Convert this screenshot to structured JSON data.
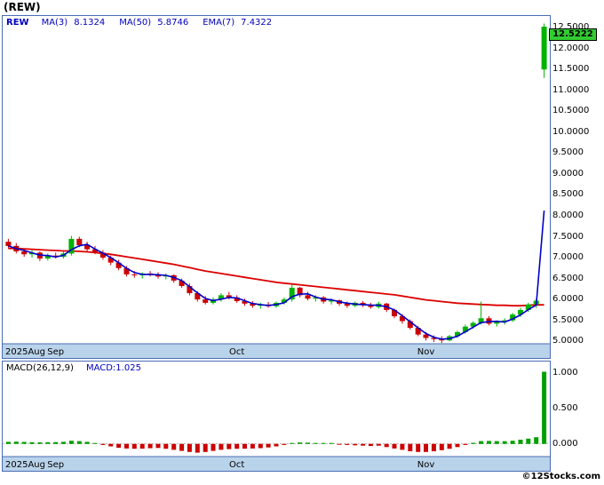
{
  "window": {
    "title": "(REW)",
    "copyright": "©12Stocks.com"
  },
  "colors": {
    "up": "#00b300",
    "down": "#cc0000",
    "ma3_line": "#0000cc",
    "ma50_line": "#dd0000",
    "frame": "#4a6db4",
    "band_bg": "#b9d3ea",
    "badge_bg": "#33cc33",
    "legend_text": "#0000bb",
    "macd_pos": "#00a000",
    "macd_neg": "#cc0000"
  },
  "main_chart": {
    "legend": {
      "symbol": "REW",
      "items": [
        {
          "label": "MA(3)",
          "value": "8.1324"
        },
        {
          "label": "MA(50)",
          "value": "5.8746"
        },
        {
          "label": "EMA(7)",
          "value": "7.4322"
        }
      ]
    },
    "last_price_badge": "12.5222",
    "y_tick_labels": [
      "12.5000",
      "12.0000",
      "11.5000",
      "11.0000",
      "10.5000",
      "10.0000",
      "9.5000",
      "9.0000",
      "8.5000",
      "8.0000",
      "7.5000",
      "7.0000",
      "6.5000",
      "6.0000",
      "5.5000",
      "5.0000"
    ]
  },
  "macd_panel": {
    "param_label": "MACD(26,12,9)",
    "value_label": "MACD:1.025",
    "y_tick_labels": [
      "1.000",
      "0.500",
      "0.000"
    ]
  },
  "chart_data": {
    "type": "candlestick",
    "title": "(REW)",
    "symbol": "REW",
    "x_axis_labels": [
      {
        "text": "2025Aug",
        "index": -1
      },
      {
        "text": "Sep",
        "index": 6
      },
      {
        "text": "Oct",
        "index": 29
      },
      {
        "text": "Nov",
        "index": 53
      }
    ],
    "price": {
      "ylim": [
        4.94,
        12.78
      ],
      "last_close": 12.5222,
      "candles": [
        [
          7.38,
          7.45,
          7.22,
          7.28
        ],
        [
          7.28,
          7.35,
          7.1,
          7.15
        ],
        [
          7.15,
          7.22,
          7.02,
          7.08
        ],
        [
          7.08,
          7.18,
          7.0,
          7.12
        ],
        [
          7.12,
          7.15,
          6.92,
          6.98
        ],
        [
          6.98,
          7.1,
          6.93,
          7.05
        ],
        [
          7.05,
          7.12,
          6.98,
          7.02
        ],
        [
          7.02,
          7.15,
          6.98,
          7.1
        ],
        [
          7.1,
          7.52,
          7.05,
          7.45
        ],
        [
          7.45,
          7.5,
          7.25,
          7.3
        ],
        [
          7.3,
          7.38,
          7.15,
          7.2
        ],
        [
          7.2,
          7.28,
          7.08,
          7.12
        ],
        [
          7.12,
          7.18,
          6.95,
          7.0
        ],
        [
          7.0,
          7.05,
          6.82,
          6.88
        ],
        [
          6.88,
          6.95,
          6.7,
          6.75
        ],
        [
          6.75,
          6.8,
          6.55,
          6.6
        ],
        [
          6.6,
          6.68,
          6.52,
          6.58
        ],
        [
          6.58,
          6.65,
          6.5,
          6.62
        ],
        [
          6.62,
          6.68,
          6.55,
          6.6
        ],
        [
          6.6,
          6.65,
          6.5,
          6.55
        ],
        [
          6.55,
          6.62,
          6.48,
          6.58
        ],
        [
          6.58,
          6.6,
          6.4,
          6.45
        ],
        [
          6.45,
          6.5,
          6.28,
          6.32
        ],
        [
          6.32,
          6.38,
          6.1,
          6.15
        ],
        [
          6.15,
          6.2,
          5.95,
          6.0
        ],
        [
          6.0,
          6.08,
          5.88,
          5.92
        ],
        [
          5.92,
          6.05,
          5.88,
          6.0
        ],
        [
          6.0,
          6.15,
          5.95,
          6.1
        ],
        [
          6.1,
          6.18,
          6.0,
          6.05
        ],
        [
          6.05,
          6.1,
          5.92,
          5.96
        ],
        [
          5.96,
          6.02,
          5.85,
          5.9
        ],
        [
          5.9,
          5.96,
          5.8,
          5.85
        ],
        [
          5.85,
          5.92,
          5.78,
          5.88
        ],
        [
          5.88,
          5.94,
          5.8,
          5.84
        ],
        [
          5.84,
          5.95,
          5.8,
          5.92
        ],
        [
          5.92,
          6.05,
          5.88,
          6.0
        ],
        [
          6.0,
          6.35,
          5.95,
          6.28
        ],
        [
          6.28,
          6.3,
          6.05,
          6.1
        ],
        [
          6.1,
          6.18,
          5.98,
          6.02
        ],
        [
          6.02,
          6.1,
          5.95,
          6.05
        ],
        [
          6.05,
          6.08,
          5.9,
          5.95
        ],
        [
          5.95,
          6.02,
          5.88,
          5.98
        ],
        [
          5.98,
          6.0,
          5.85,
          5.9
        ],
        [
          5.9,
          5.95,
          5.8,
          5.85
        ],
        [
          5.85,
          5.95,
          5.82,
          5.92
        ],
        [
          5.92,
          5.96,
          5.82,
          5.86
        ],
        [
          5.86,
          5.92,
          5.78,
          5.82
        ],
        [
          5.82,
          5.95,
          5.78,
          5.9
        ],
        [
          5.9,
          5.92,
          5.7,
          5.75
        ],
        [
          5.75,
          5.78,
          5.55,
          5.6
        ],
        [
          5.6,
          5.65,
          5.42,
          5.48
        ],
        [
          5.48,
          5.52,
          5.28,
          5.32
        ],
        [
          5.32,
          5.36,
          5.12,
          5.16
        ],
        [
          5.16,
          5.22,
          5.02,
          5.08
        ],
        [
          5.08,
          5.14,
          4.98,
          5.05
        ],
        [
          5.05,
          5.12,
          4.96,
          5.02
        ],
        [
          5.02,
          5.15,
          5.0,
          5.12
        ],
        [
          5.12,
          5.25,
          5.08,
          5.22
        ],
        [
          5.22,
          5.4,
          5.18,
          5.35
        ],
        [
          5.35,
          5.48,
          5.3,
          5.44
        ],
        [
          5.44,
          5.95,
          5.4,
          5.55
        ],
        [
          5.55,
          5.6,
          5.38,
          5.42
        ],
        [
          5.42,
          5.5,
          5.35,
          5.46
        ],
        [
          5.46,
          5.55,
          5.4,
          5.5
        ],
        [
          5.5,
          5.68,
          5.46,
          5.64
        ],
        [
          5.64,
          5.8,
          5.58,
          5.75
        ],
        [
          5.75,
          5.92,
          5.7,
          5.88
        ],
        [
          5.88,
          6.02,
          5.8,
          5.97
        ],
        [
          11.5,
          12.6,
          11.3,
          12.5222
        ]
      ],
      "ma50": [
        7.22,
        7.22,
        7.21,
        7.2,
        7.19,
        7.18,
        7.17,
        7.16,
        7.16,
        7.15,
        7.14,
        7.12,
        7.1,
        7.08,
        7.05,
        7.02,
        6.99,
        6.96,
        6.93,
        6.9,
        6.87,
        6.84,
        6.8,
        6.76,
        6.72,
        6.68,
        6.65,
        6.62,
        6.59,
        6.56,
        6.53,
        6.5,
        6.47,
        6.44,
        6.41,
        6.39,
        6.37,
        6.35,
        6.33,
        6.31,
        6.29,
        6.27,
        6.25,
        6.23,
        6.21,
        6.19,
        6.17,
        6.15,
        6.13,
        6.11,
        6.08,
        6.05,
        6.02,
        5.99,
        5.97,
        5.95,
        5.93,
        5.91,
        5.9,
        5.89,
        5.88,
        5.87,
        5.86,
        5.86,
        5.85,
        5.85,
        5.86,
        5.87,
        5.87
      ]
    },
    "macd": {
      "type": "bar",
      "ylim": [
        -0.18,
        1.17
      ],
      "last_value": 1.025,
      "values": [
        0.03,
        0.032,
        0.028,
        0.025,
        0.022,
        0.024,
        0.026,
        0.03,
        0.045,
        0.04,
        0.03,
        0.01,
        -0.015,
        -0.035,
        -0.055,
        -0.065,
        -0.07,
        -0.068,
        -0.062,
        -0.058,
        -0.07,
        -0.085,
        -0.1,
        -0.115,
        -0.125,
        -0.115,
        -0.1,
        -0.085,
        -0.075,
        -0.07,
        -0.068,
        -0.065,
        -0.06,
        -0.05,
        -0.035,
        -0.015,
        0.01,
        0.02,
        0.018,
        0.012,
        0.008,
        0.005,
        -0.005,
        -0.015,
        -0.02,
        -0.025,
        -0.03,
        -0.025,
        -0.045,
        -0.065,
        -0.085,
        -0.105,
        -0.115,
        -0.115,
        -0.105,
        -0.09,
        -0.07,
        -0.045,
        -0.015,
        0.015,
        0.04,
        0.042,
        0.04,
        0.038,
        0.045,
        0.06,
        0.075,
        0.095,
        1.025
      ]
    }
  }
}
